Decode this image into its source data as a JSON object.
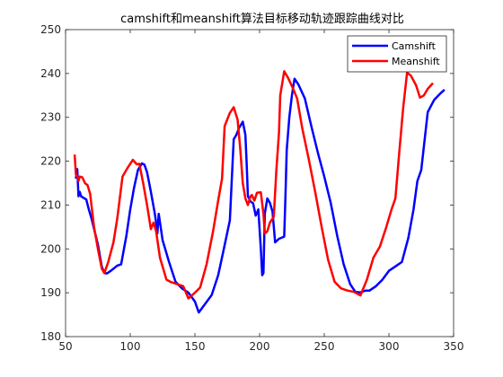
{
  "chart_data": {
    "type": "line",
    "title": "camshift和meanshift算法目标移动轨迹跟踪曲线对比",
    "xlabel": "",
    "ylabel": "",
    "xlim": [
      50,
      350
    ],
    "ylim": [
      180,
      250
    ],
    "xticks": [
      50,
      100,
      150,
      200,
      250,
      300,
      350
    ],
    "yticks": [
      180,
      190,
      200,
      210,
      220,
      230,
      240,
      250
    ],
    "grid": false,
    "legend_position": "top-right",
    "series": [
      {
        "name": "Camshift",
        "color": "#0000ff",
        "points": [
          [
            58,
            216
          ],
          [
            59,
            218.2
          ],
          [
            60,
            212
          ],
          [
            61,
            213
          ],
          [
            62,
            212
          ],
          [
            64,
            211.6
          ],
          [
            66,
            211.3
          ],
          [
            68,
            209
          ],
          [
            70,
            207
          ],
          [
            75,
            201
          ],
          [
            78,
            196
          ],
          [
            80,
            194.5
          ],
          [
            82,
            194.4
          ],
          [
            85,
            195
          ],
          [
            90,
            196.2
          ],
          [
            93,
            196.5
          ],
          [
            97,
            203
          ],
          [
            100,
            209
          ],
          [
            103,
            214
          ],
          [
            106,
            218
          ],
          [
            109,
            219.5
          ],
          [
            111,
            219.2
          ],
          [
            113,
            217.5
          ],
          [
            116,
            213
          ],
          [
            119,
            208
          ],
          [
            120,
            206
          ],
          [
            121,
            203.5
          ],
          [
            122,
            208
          ],
          [
            125,
            202
          ],
          [
            130,
            197
          ],
          [
            135,
            192.5
          ],
          [
            140,
            191
          ],
          [
            145,
            190
          ],
          [
            150,
            188
          ],
          [
            153,
            185.5
          ],
          [
            158,
            187.5
          ],
          [
            163,
            189.5
          ],
          [
            168,
            194
          ],
          [
            172,
            199.5
          ],
          [
            177,
            206.5
          ],
          [
            180,
            225
          ],
          [
            182,
            226
          ],
          [
            184,
            227.5
          ],
          [
            187,
            229
          ],
          [
            189,
            226
          ],
          [
            190,
            219.5
          ],
          [
            191,
            212
          ],
          [
            193,
            210.8
          ],
          [
            195,
            210.4
          ],
          [
            197,
            207.6
          ],
          [
            199,
            209
          ],
          [
            201,
            200
          ],
          [
            202,
            194
          ],
          [
            203,
            194.5
          ],
          [
            204,
            208
          ],
          [
            206,
            211.5
          ],
          [
            208,
            210.5
          ],
          [
            210,
            208.5
          ],
          [
            212,
            201.5
          ],
          [
            215,
            202.3
          ],
          [
            219,
            202.8
          ],
          [
            220,
            212
          ],
          [
            221,
            222.5
          ],
          [
            223,
            230
          ],
          [
            225,
            235
          ],
          [
            227,
            238.8
          ],
          [
            230,
            237.5
          ],
          [
            235,
            234.3
          ],
          [
            240,
            228
          ],
          [
            245,
            222
          ],
          [
            250,
            216.5
          ],
          [
            255,
            210.5
          ],
          [
            260,
            203
          ],
          [
            265,
            196.5
          ],
          [
            270,
            192
          ],
          [
            274,
            190.2
          ],
          [
            278,
            190.1
          ],
          [
            282,
            190.5
          ],
          [
            285,
            190.5
          ],
          [
            290,
            191.5
          ],
          [
            295,
            193
          ],
          [
            300,
            195
          ],
          [
            305,
            196
          ],
          [
            310,
            197
          ],
          [
            315,
            202.5
          ],
          [
            319,
            209
          ],
          [
            322,
            215.5
          ],
          [
            325,
            218
          ],
          [
            330,
            231.2
          ],
          [
            335,
            234
          ],
          [
            340,
            235.5
          ],
          [
            343,
            236.3
          ]
        ]
      },
      {
        "name": "Meanshift",
        "color": "#ff0000",
        "points": [
          [
            57,
            221.5
          ],
          [
            58,
            217
          ],
          [
            59,
            216.5
          ],
          [
            60,
            215.5
          ],
          [
            61,
            216.5
          ],
          [
            63,
            216.3
          ],
          [
            65,
            215
          ],
          [
            67,
            214.5
          ],
          [
            69,
            212.5
          ],
          [
            70,
            210
          ],
          [
            72,
            205
          ],
          [
            75,
            200
          ],
          [
            78,
            195.5
          ],
          [
            80,
            194.5
          ],
          [
            83,
            197
          ],
          [
            87,
            201.5
          ],
          [
            90,
            207
          ],
          [
            94,
            216.5
          ],
          [
            98,
            218.5
          ],
          [
            102,
            220.3
          ],
          [
            105,
            219.3
          ],
          [
            107,
            219.4
          ],
          [
            110,
            215
          ],
          [
            113,
            210
          ],
          [
            116,
            204.5
          ],
          [
            118,
            206
          ],
          [
            120,
            204
          ],
          [
            123,
            198
          ],
          [
            128,
            193
          ],
          [
            131,
            192.5
          ],
          [
            136,
            192
          ],
          [
            141,
            191.5
          ],
          [
            145,
            188.7
          ],
          [
            150,
            190
          ],
          [
            154,
            191.2
          ],
          [
            159,
            196.5
          ],
          [
            164,
            204
          ],
          [
            168,
            211
          ],
          [
            171,
            216
          ],
          [
            173,
            228
          ],
          [
            177,
            231
          ],
          [
            180,
            232.3
          ],
          [
            183,
            229.5
          ],
          [
            185,
            223
          ],
          [
            187,
            215
          ],
          [
            189,
            211.5
          ],
          [
            191,
            210
          ],
          [
            193,
            212
          ],
          [
            194,
            212.3
          ],
          [
            196,
            211
          ],
          [
            198,
            212.8
          ],
          [
            201,
            212.9
          ],
          [
            203,
            208
          ],
          [
            204,
            203.5
          ],
          [
            206,
            204
          ],
          [
            208,
            206
          ],
          [
            211,
            207.3
          ],
          [
            213,
            218
          ],
          [
            215,
            226.5
          ],
          [
            216,
            235
          ],
          [
            219,
            240.5
          ],
          [
            222,
            239
          ],
          [
            226,
            236.5
          ],
          [
            229,
            234.3
          ],
          [
            233,
            227.5
          ],
          [
            238,
            220.5
          ],
          [
            243,
            213
          ],
          [
            248,
            205
          ],
          [
            253,
            197.5
          ],
          [
            258,
            192.5
          ],
          [
            263,
            191
          ],
          [
            268,
            190.5
          ],
          [
            273,
            190.2
          ],
          [
            278,
            189.4
          ],
          [
            283,
            193
          ],
          [
            288,
            198
          ],
          [
            293,
            200.5
          ],
          [
            298,
            205
          ],
          [
            302,
            209
          ],
          [
            305,
            211.5
          ],
          [
            308,
            222
          ],
          [
            311,
            232
          ],
          [
            314,
            240.2
          ],
          [
            317,
            239.5
          ],
          [
            321,
            237.3
          ],
          [
            324,
            234.5
          ],
          [
            327,
            235
          ],
          [
            330,
            236.5
          ],
          [
            334,
            237.8
          ]
        ]
      }
    ]
  }
}
